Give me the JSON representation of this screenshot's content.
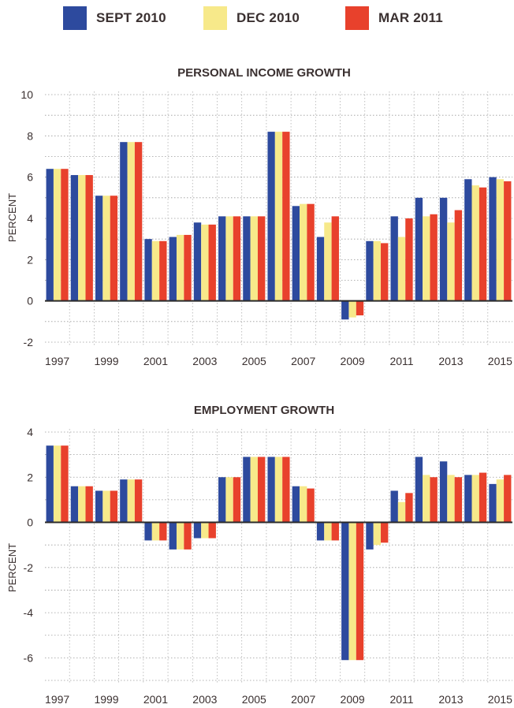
{
  "legend": [
    {
      "label": "SEPT 2010",
      "color": "#2d4a9e"
    },
    {
      "label": "DEC 2010",
      "color": "#f7e98a"
    },
    {
      "label": "MAR 2011",
      "color": "#e8412c"
    }
  ],
  "chart_data": [
    {
      "type": "bar",
      "title": "PERSONAL INCOME GROWTH",
      "ylabel": "PERCENT",
      "xlabel": "",
      "ylim": [
        -2,
        10
      ],
      "yticks": [
        -2,
        0,
        2,
        4,
        6,
        8,
        10
      ],
      "grid": true,
      "categories": [
        "1997",
        "1998",
        "1999",
        "2000",
        "2001",
        "2002",
        "2003",
        "2004",
        "2005",
        "2006",
        "2007",
        "2008",
        "2009",
        "2010",
        "2011",
        "2012",
        "2013",
        "2014",
        "2015"
      ],
      "xtick_labels": [
        "1997",
        "1999",
        "2001",
        "2003",
        "2005",
        "2007",
        "2009",
        "2011",
        "2013",
        "2015"
      ],
      "series": [
        {
          "name": "SEPT 2010",
          "values": [
            6.4,
            6.1,
            5.1,
            7.7,
            3.0,
            3.1,
            3.8,
            4.1,
            4.1,
            8.2,
            4.6,
            3.1,
            -0.9,
            2.9,
            4.1,
            5.0,
            5.0,
            5.9,
            6.0
          ]
        },
        {
          "name": "DEC 2010",
          "values": [
            6.4,
            6.1,
            5.1,
            7.7,
            2.9,
            3.2,
            3.7,
            4.1,
            4.1,
            8.2,
            4.7,
            3.8,
            -0.8,
            2.9,
            3.1,
            4.1,
            3.8,
            5.6,
            5.9
          ]
        },
        {
          "name": "MAR 2011",
          "values": [
            6.4,
            6.1,
            5.1,
            7.7,
            2.9,
            3.2,
            3.7,
            4.1,
            4.1,
            8.2,
            4.7,
            4.1,
            -0.7,
            2.8,
            4.0,
            4.2,
            4.4,
            5.5,
            5.8
          ]
        }
      ]
    },
    {
      "type": "bar",
      "title": "EMPLOYMENT GROWTH",
      "ylabel": "PERCENT",
      "xlabel": "",
      "ylim": [
        -7,
        4
      ],
      "yticks": [
        -6,
        -4,
        -2,
        0,
        2,
        4
      ],
      "grid": true,
      "categories": [
        "1997",
        "1998",
        "1999",
        "2000",
        "2001",
        "2002",
        "2003",
        "2004",
        "2005",
        "2006",
        "2007",
        "2008",
        "2009",
        "2010",
        "2011",
        "2012",
        "2013",
        "2014",
        "2015"
      ],
      "xtick_labels": [
        "1997",
        "1999",
        "2001",
        "2003",
        "2005",
        "2007",
        "2009",
        "2011",
        "2013",
        "2015"
      ],
      "series": [
        {
          "name": "SEPT 2010",
          "values": [
            3.4,
            1.6,
            1.4,
            1.9,
            -0.8,
            -1.2,
            -0.7,
            2.0,
            2.9,
            2.9,
            1.6,
            -0.8,
            -6.1,
            -1.2,
            1.4,
            2.9,
            2.7,
            2.1,
            1.7
          ]
        },
        {
          "name": "DEC 2010",
          "values": [
            3.4,
            1.6,
            1.4,
            1.9,
            -0.8,
            -1.2,
            -0.7,
            2.0,
            2.9,
            2.9,
            1.6,
            -0.8,
            -6.1,
            -1.0,
            0.9,
            2.1,
            2.1,
            2.1,
            1.9
          ]
        },
        {
          "name": "MAR 2011",
          "values": [
            3.4,
            1.6,
            1.4,
            1.9,
            -0.8,
            -1.2,
            -0.7,
            2.0,
            2.9,
            2.9,
            1.5,
            -0.8,
            -6.1,
            -0.9,
            1.3,
            2.0,
            2.0,
            2.2,
            2.1
          ]
        }
      ]
    }
  ]
}
